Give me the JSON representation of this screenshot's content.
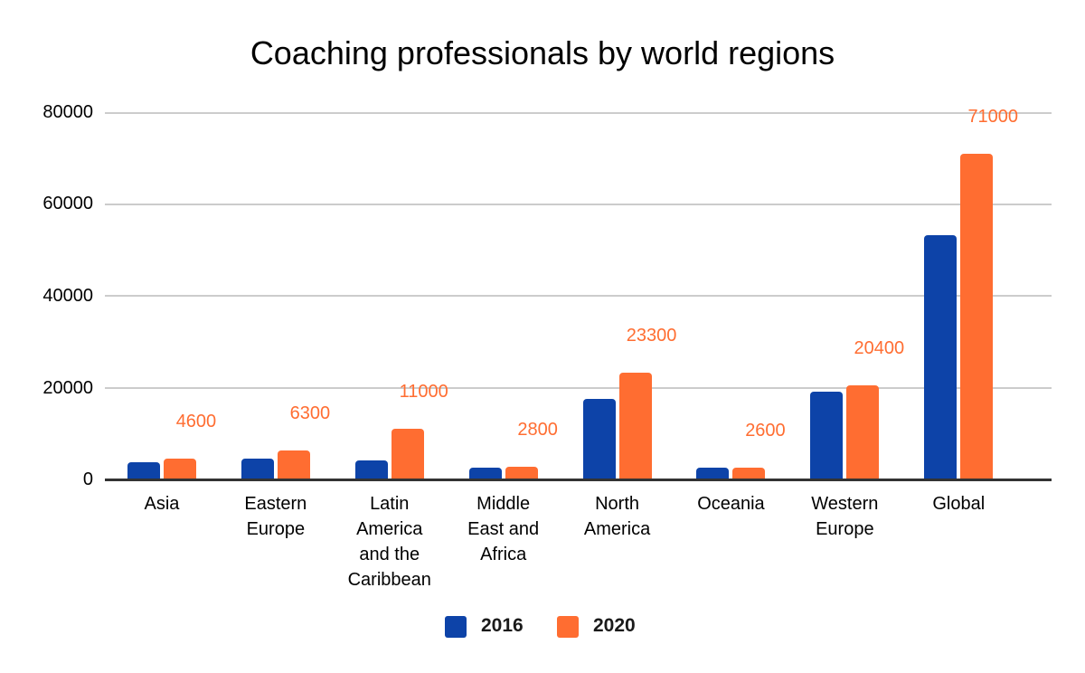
{
  "chart_data": {
    "type": "bar",
    "title": "Coaching professionals by world regions",
    "xlabel": "",
    "ylabel": "",
    "ylim": [
      0,
      80000
    ],
    "yticks": [
      "0",
      "20000",
      "40000",
      "60000",
      "80000"
    ],
    "grid": true,
    "legend_position": "bottom",
    "categories": [
      "Asia",
      "Eastern Europe",
      "Latin America and the Caribbean",
      "Middle East and Africa",
      "North America",
      "Oceania",
      "Western Europe",
      "Global"
    ],
    "series": [
      {
        "name": "2016",
        "color": "#0d43a8",
        "values": [
          3700,
          4500,
          4100,
          2600,
          17500,
          2500,
          19100,
          53300
        ]
      },
      {
        "name": "2020",
        "color": "#ff6d31",
        "values": [
          4600,
          6300,
          11000,
          2800,
          23300,
          2600,
          20400,
          71000
        ]
      }
    ],
    "data_labels_2020": [
      "4600",
      "6300",
      "11000",
      "2800",
      "23300",
      "2600",
      "20400",
      "71000"
    ]
  },
  "labels": {
    "title": "Coaching professionals by world regions",
    "yticks": {
      "t0": "0",
      "t1": "20000",
      "t2": "40000",
      "t3": "60000",
      "t4": "80000"
    },
    "cats": [
      [
        "Asia"
      ],
      [
        "Eastern",
        "Europe"
      ],
      [
        "Latin",
        "America",
        "and the",
        "Caribbean"
      ],
      [
        "Middle",
        "East and",
        "Africa"
      ],
      [
        "North",
        "America"
      ],
      [
        "Oceania"
      ],
      [
        "Western",
        "Europe"
      ],
      [
        "Global"
      ]
    ],
    "legend": {
      "s1": "2016",
      "s2": "2020"
    }
  }
}
